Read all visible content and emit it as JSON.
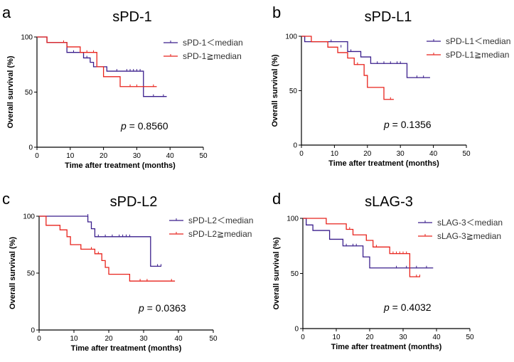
{
  "chart_data": [
    {
      "type": "line",
      "panel_letter": "a",
      "title": "sPD-1",
      "xlabel": "Time after treatment (months)",
      "ylabel": "Overall survival (%)",
      "xlim": [
        0,
        50
      ],
      "ylim": [
        0,
        100
      ],
      "xticks": [
        0,
        10,
        20,
        30,
        40,
        50
      ],
      "yticks": [
        0,
        50,
        100
      ],
      "x_tick_labels": [
        "0",
        "10",
        "20",
        "30",
        "40",
        "50"
      ],
      "y_tick_labels": [
        "0",
        "50",
        "100"
      ],
      "p_label": "p",
      "p_value_text": "= 0.8560",
      "legend_placement": "top-right",
      "series": [
        {
          "name": "sPD-1＜median",
          "color": "#3a1e8c",
          "steps": [
            [
              0,
              100
            ],
            [
              3,
              95
            ],
            [
              9,
              86
            ],
            [
              14,
              81
            ],
            [
              16,
              77
            ],
            [
              17,
              73
            ],
            [
              21,
              69
            ],
            [
              32,
              46
            ],
            [
              39,
              46
            ]
          ],
          "censors": [
            [
              11,
              86
            ],
            [
              15,
              81
            ],
            [
              24,
              69
            ],
            [
              27,
              69
            ],
            [
              28,
              69
            ],
            [
              29,
              69
            ],
            [
              30,
              69
            ],
            [
              31,
              69
            ],
            [
              35,
              46
            ],
            [
              38,
              46
            ]
          ]
        },
        {
          "name": "sPD-1≧median",
          "color": "#e8231c",
          "steps": [
            [
              0,
              100
            ],
            [
              3,
              95
            ],
            [
              9,
              91
            ],
            [
              13,
              86
            ],
            [
              18,
              73
            ],
            [
              20,
              64
            ],
            [
              25,
              55
            ],
            [
              36,
              55
            ]
          ],
          "censors": [
            [
              8,
              95
            ],
            [
              15,
              86
            ],
            [
              17,
              86
            ],
            [
              28,
              55
            ],
            [
              30,
              55
            ],
            [
              35,
              55
            ]
          ]
        }
      ]
    },
    {
      "type": "line",
      "panel_letter": "b",
      "title": "sPD-L1",
      "xlabel": "Time after treatment (months)",
      "ylabel": "Overall survival (%)",
      "xlim": [
        0,
        50
      ],
      "ylim": [
        0,
        100
      ],
      "xticks": [
        0,
        10,
        20,
        30,
        40,
        50
      ],
      "yticks": [
        0,
        50,
        100
      ],
      "x_tick_labels": [
        "0",
        "10",
        "20",
        "30",
        "40",
        "50"
      ],
      "y_tick_labels": [
        "0",
        "50",
        "100"
      ],
      "p_label": "p",
      "p_value_text": "= 0.1356",
      "legend_placement": "top-right",
      "series": [
        {
          "name": "sPD-L1＜median",
          "color": "#3a1e8c",
          "steps": [
            [
              0,
              100
            ],
            [
              1,
              95
            ],
            [
              14,
              86
            ],
            [
              18,
              81
            ],
            [
              21,
              75
            ],
            [
              32,
              62
            ],
            [
              39,
              62
            ]
          ],
          "censors": [
            [
              9,
              95
            ],
            [
              12,
              90
            ],
            [
              15,
              86
            ],
            [
              23,
              75
            ],
            [
              25,
              75
            ],
            [
              27,
              75
            ],
            [
              29,
              75
            ],
            [
              30,
              75
            ],
            [
              35,
              62
            ],
            [
              37,
              62
            ]
          ]
        },
        {
          "name": "sPD-L1≧median",
          "color": "#e8231c",
          "steps": [
            [
              0,
              100
            ],
            [
              3,
              95
            ],
            [
              8,
              90
            ],
            [
              11,
              85
            ],
            [
              14,
              80
            ],
            [
              16,
              74
            ],
            [
              19,
              64
            ],
            [
              20,
              53
            ],
            [
              25,
              42
            ],
            [
              28,
              42
            ]
          ],
          "censors": [
            [
              17,
              74
            ],
            [
              27,
              42
            ]
          ]
        }
      ]
    },
    {
      "type": "line",
      "panel_letter": "c",
      "title": "sPD-L2",
      "xlabel": "Time after treatment (months)",
      "ylabel": "Overall survival (%)",
      "xlim": [
        0,
        50
      ],
      "ylim": [
        0,
        100
      ],
      "xticks": [
        0,
        10,
        20,
        30,
        40,
        50
      ],
      "yticks": [
        0,
        50,
        100
      ],
      "x_tick_labels": [
        "0",
        "10",
        "20",
        "30",
        "40",
        "50"
      ],
      "y_tick_labels": [
        "0",
        "50",
        "100"
      ],
      "p_label": "p",
      "p_value_text": "= 0.0363",
      "legend_placement": "top-right",
      "series": [
        {
          "name": "sPD-L2＜median",
          "color": "#3a1e8c",
          "steps": [
            [
              0,
              100
            ],
            [
              14,
              95
            ],
            [
              15,
              89
            ],
            [
              16,
              82
            ],
            [
              32,
              56
            ],
            [
              35,
              56
            ]
          ],
          "censors": [
            [
              14,
              100
            ],
            [
              17,
              82
            ],
            [
              19,
              82
            ],
            [
              21,
              82
            ],
            [
              23,
              82
            ],
            [
              24,
              82
            ],
            [
              25,
              82
            ],
            [
              26,
              82
            ],
            [
              34,
              56
            ],
            [
              35,
              56
            ]
          ]
        },
        {
          "name": "sPD-L2≧median",
          "color": "#e8231c",
          "steps": [
            [
              0,
              100
            ],
            [
              2,
              92
            ],
            [
              6,
              88
            ],
            [
              8,
              82
            ],
            [
              9,
              75
            ],
            [
              12,
              71
            ],
            [
              16,
              67
            ],
            [
              18,
              61
            ],
            [
              19,
              55
            ],
            [
              20,
              49
            ],
            [
              26,
              43
            ],
            [
              39,
              43
            ]
          ],
          "censors": [
            [
              15,
              71
            ],
            [
              17,
              67
            ],
            [
              29,
              43
            ],
            [
              31,
              43
            ],
            [
              38,
              43
            ]
          ]
        }
      ]
    },
    {
      "type": "line",
      "panel_letter": "d",
      "title": "sLAG-3",
      "xlabel": "Time after treatment (months)",
      "ylabel": "Overall survival (%)",
      "xlim": [
        0,
        50
      ],
      "ylim": [
        0,
        100
      ],
      "xticks": [
        0,
        10,
        20,
        30,
        40,
        50
      ],
      "yticks": [
        0,
        50,
        100
      ],
      "x_tick_labels": [
        "0",
        "10",
        "20",
        "30",
        "40",
        "50"
      ],
      "y_tick_labels": [
        "0",
        "50",
        "100"
      ],
      "p_label": "p",
      "p_value_text": "= 0.4032",
      "legend_placement": "top-right",
      "series": [
        {
          "name": "sLAG-3＜median",
          "color": "#3a1e8c",
          "steps": [
            [
              0,
              100
            ],
            [
              1,
              94
            ],
            [
              3,
              89
            ],
            [
              8,
              81
            ],
            [
              12,
              75
            ],
            [
              18,
              65
            ],
            [
              20,
              55
            ],
            [
              39,
              55
            ]
          ],
          "censors": [
            [
              13,
              75
            ],
            [
              15,
              75
            ],
            [
              16,
              75
            ],
            [
              28,
              55
            ],
            [
              31,
              55
            ],
            [
              34,
              55
            ],
            [
              37,
              55
            ]
          ]
        },
        {
          "name": "sLAG-3≧median",
          "color": "#e8231c",
          "steps": [
            [
              0,
              100
            ],
            [
              7,
              95
            ],
            [
              13,
              90
            ],
            [
              15,
              85
            ],
            [
              19,
              80
            ],
            [
              21,
              74
            ],
            [
              26,
              68
            ],
            [
              32,
              47
            ],
            [
              35,
              47
            ]
          ],
          "censors": [
            [
              14,
              90
            ],
            [
              22,
              74
            ],
            [
              27,
              68
            ],
            [
              28,
              68
            ],
            [
              29,
              68
            ],
            [
              30,
              68
            ],
            [
              31,
              68
            ],
            [
              34,
              47
            ],
            [
              35,
              47
            ]
          ]
        }
      ]
    }
  ]
}
